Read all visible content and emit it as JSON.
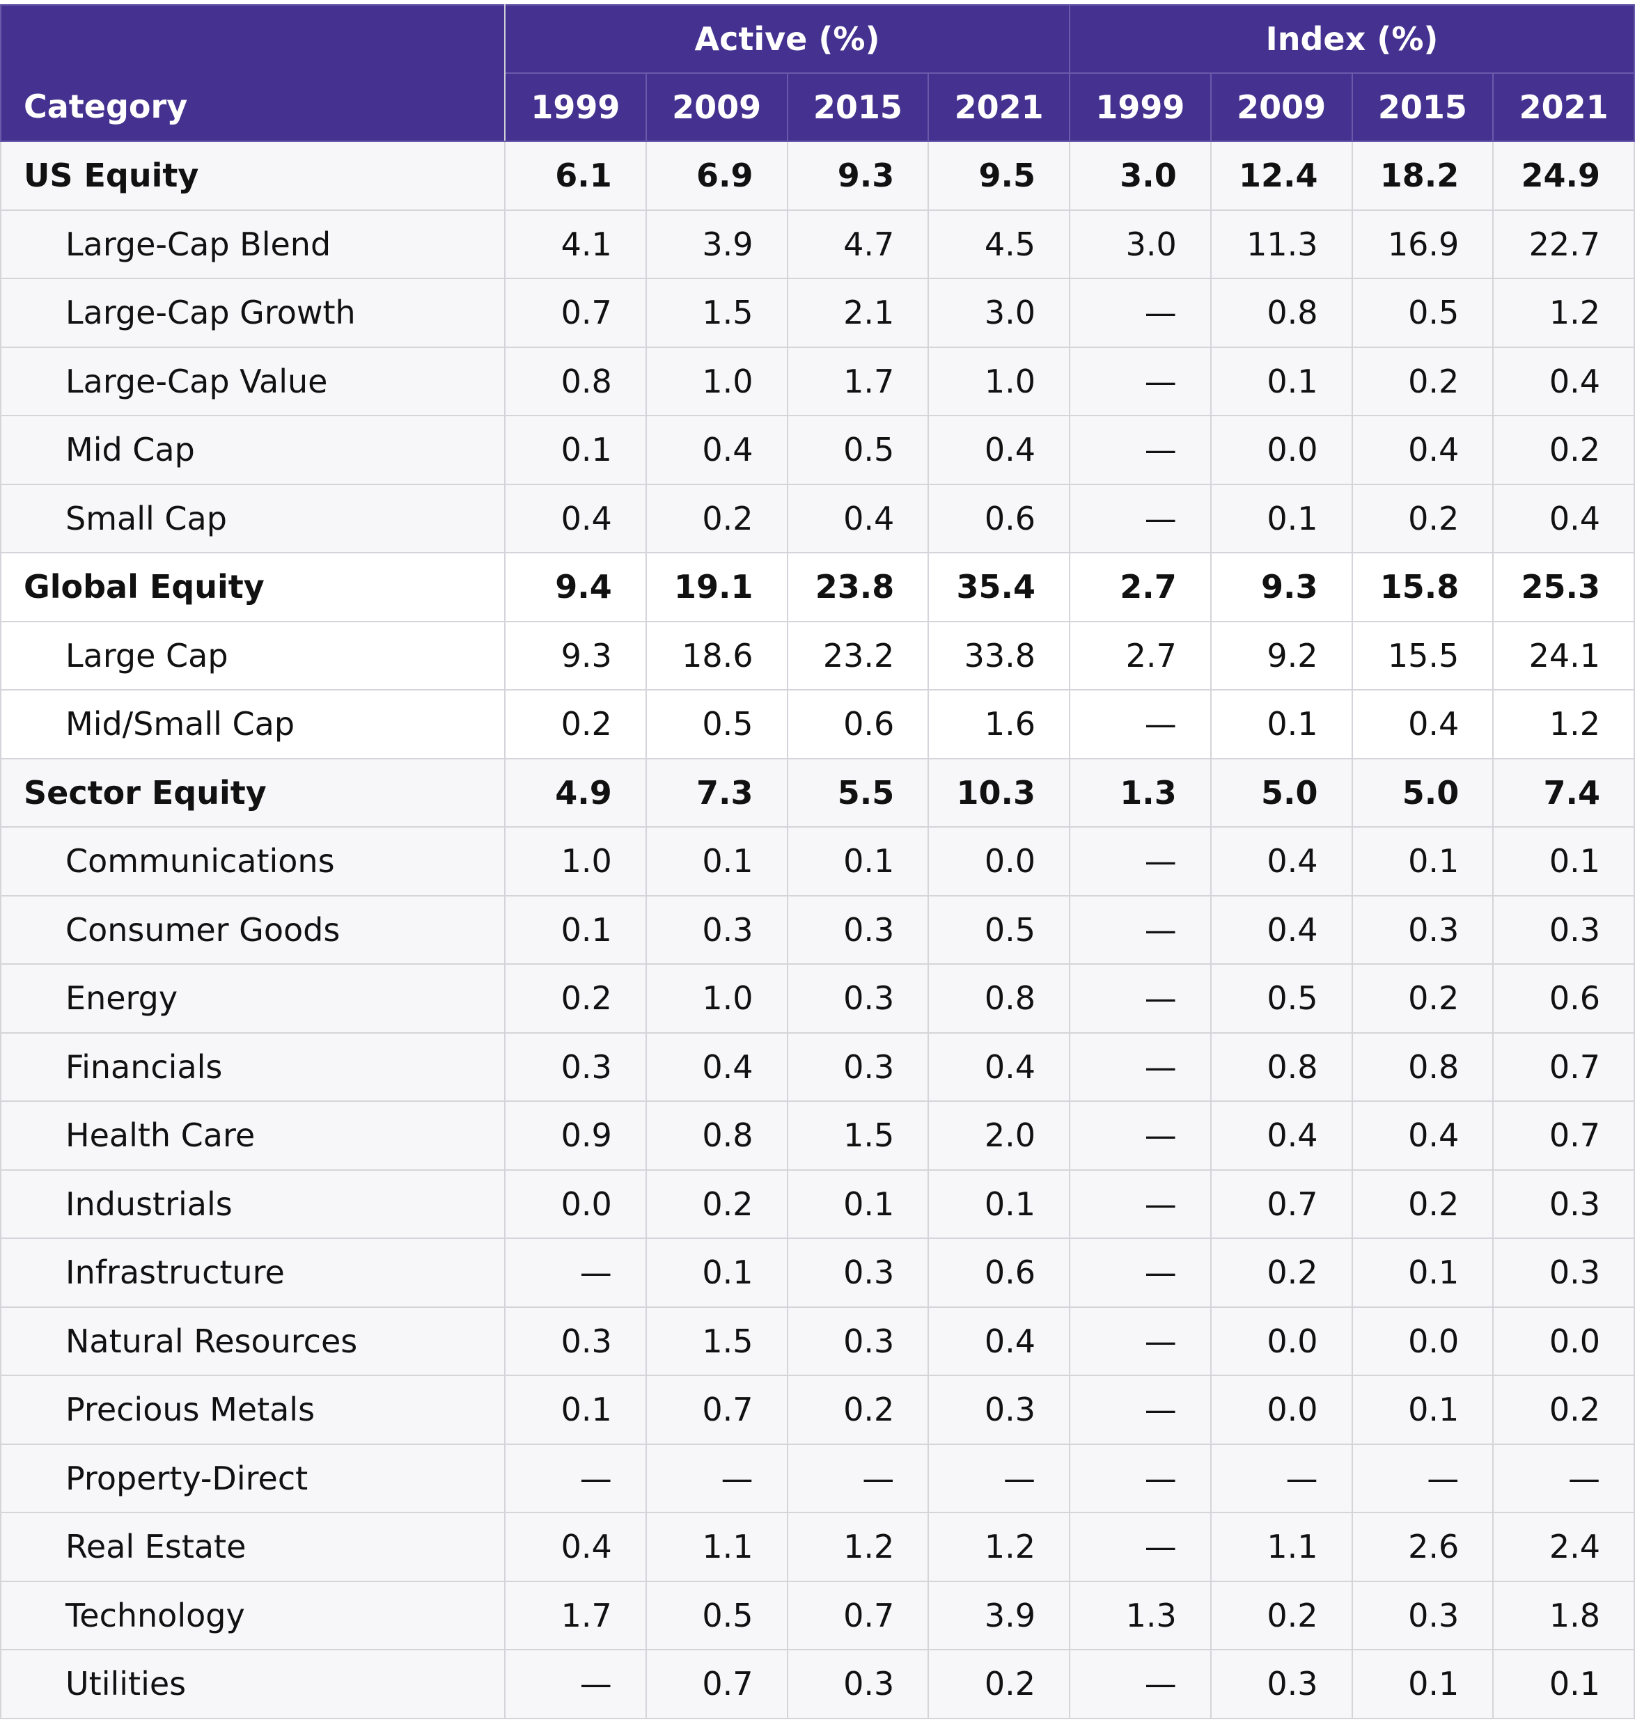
{
  "chart_data": {
    "type": "table",
    "title": "",
    "header": {
      "category_label": "Category",
      "groups": [
        "Active (%)",
        "Index (%)"
      ],
      "years": [
        "1999",
        "2009",
        "2015",
        "2021",
        "1999",
        "2009",
        "2015",
        "2021"
      ]
    },
    "rows": [
      {
        "label": "US Equity",
        "level": 0,
        "values": [
          "6.1",
          "6.9",
          "9.3",
          "9.5",
          "3.0",
          "12.4",
          "18.2",
          "24.9"
        ]
      },
      {
        "label": "Large-Cap Blend",
        "level": 1,
        "values": [
          "4.1",
          "3.9",
          "4.7",
          "4.5",
          "3.0",
          "11.3",
          "16.9",
          "22.7"
        ]
      },
      {
        "label": "Large-Cap Growth",
        "level": 1,
        "values": [
          "0.7",
          "1.5",
          "2.1",
          "3.0",
          "—",
          "0.8",
          "0.5",
          "1.2"
        ]
      },
      {
        "label": "Large-Cap Value",
        "level": 1,
        "values": [
          "0.8",
          "1.0",
          "1.7",
          "1.0",
          "—",
          "0.1",
          "0.2",
          "0.4"
        ]
      },
      {
        "label": "Mid Cap",
        "level": 1,
        "values": [
          "0.1",
          "0.4",
          "0.5",
          "0.4",
          "—",
          "0.0",
          "0.4",
          "0.2"
        ]
      },
      {
        "label": "Small Cap",
        "level": 1,
        "values": [
          "0.4",
          "0.2",
          "0.4",
          "0.6",
          "—",
          "0.1",
          "0.2",
          "0.4"
        ]
      },
      {
        "label": "Global Equity",
        "level": 0,
        "values": [
          "9.4",
          "19.1",
          "23.8",
          "35.4",
          "2.7",
          "9.3",
          "15.8",
          "25.3"
        ]
      },
      {
        "label": "Large Cap",
        "level": 1,
        "values": [
          "9.3",
          "18.6",
          "23.2",
          "33.8",
          "2.7",
          "9.2",
          "15.5",
          "24.1"
        ]
      },
      {
        "label": "Mid/Small Cap",
        "level": 1,
        "values": [
          "0.2",
          "0.5",
          "0.6",
          "1.6",
          "—",
          "0.1",
          "0.4",
          "1.2"
        ]
      },
      {
        "label": "Sector Equity",
        "level": 0,
        "values": [
          "4.9",
          "7.3",
          "5.5",
          "10.3",
          "1.3",
          "5.0",
          "5.0",
          "7.4"
        ]
      },
      {
        "label": "Communications",
        "level": 1,
        "values": [
          "1.0",
          "0.1",
          "0.1",
          "0.0",
          "—",
          "0.4",
          "0.1",
          "0.1"
        ]
      },
      {
        "label": "Consumer Goods",
        "level": 1,
        "values": [
          "0.1",
          "0.3",
          "0.3",
          "0.5",
          "—",
          "0.4",
          "0.3",
          "0.3"
        ]
      },
      {
        "label": "Energy",
        "level": 1,
        "values": [
          "0.2",
          "1.0",
          "0.3",
          "0.8",
          "—",
          "0.5",
          "0.2",
          "0.6"
        ]
      },
      {
        "label": "Financials",
        "level": 1,
        "values": [
          "0.3",
          "0.4",
          "0.3",
          "0.4",
          "—",
          "0.8",
          "0.8",
          "0.7"
        ]
      },
      {
        "label": "Health Care",
        "level": 1,
        "values": [
          "0.9",
          "0.8",
          "1.5",
          "2.0",
          "—",
          "0.4",
          "0.4",
          "0.7"
        ]
      },
      {
        "label": "Industrials",
        "level": 1,
        "values": [
          "0.0",
          "0.2",
          "0.1",
          "0.1",
          "—",
          "0.7",
          "0.2",
          "0.3"
        ]
      },
      {
        "label": "Infrastructure",
        "level": 1,
        "values": [
          "—",
          "0.1",
          "0.3",
          "0.6",
          "—",
          "0.2",
          "0.1",
          "0.3"
        ]
      },
      {
        "label": "Natural Resources",
        "level": 1,
        "values": [
          "0.3",
          "1.5",
          "0.3",
          "0.4",
          "—",
          "0.0",
          "0.0",
          "0.0"
        ]
      },
      {
        "label": "Precious Metals",
        "level": 1,
        "values": [
          "0.1",
          "0.7",
          "0.2",
          "0.3",
          "—",
          "0.0",
          "0.1",
          "0.2"
        ]
      },
      {
        "label": "Property-Direct",
        "level": 1,
        "values": [
          "—",
          "—",
          "—",
          "—",
          "—",
          "—",
          "—",
          "—"
        ]
      },
      {
        "label": "Real Estate",
        "level": 1,
        "values": [
          "0.4",
          "1.1",
          "1.2",
          "1.2",
          "—",
          "1.1",
          "2.6",
          "2.4"
        ]
      },
      {
        "label": "Technology",
        "level": 1,
        "values": [
          "1.7",
          "0.5",
          "0.7",
          "3.9",
          "1.3",
          "0.2",
          "0.3",
          "1.8"
        ]
      },
      {
        "label": "Utilities",
        "level": 1,
        "values": [
          "—",
          "0.7",
          "0.3",
          "0.2",
          "—",
          "0.3",
          "0.1",
          "0.1"
        ]
      }
    ]
  },
  "colors": {
    "header_bg": "#45318f",
    "header_text": "#ffffff",
    "row_shade": "#f7f7f9",
    "grid": "#d4d4da"
  }
}
